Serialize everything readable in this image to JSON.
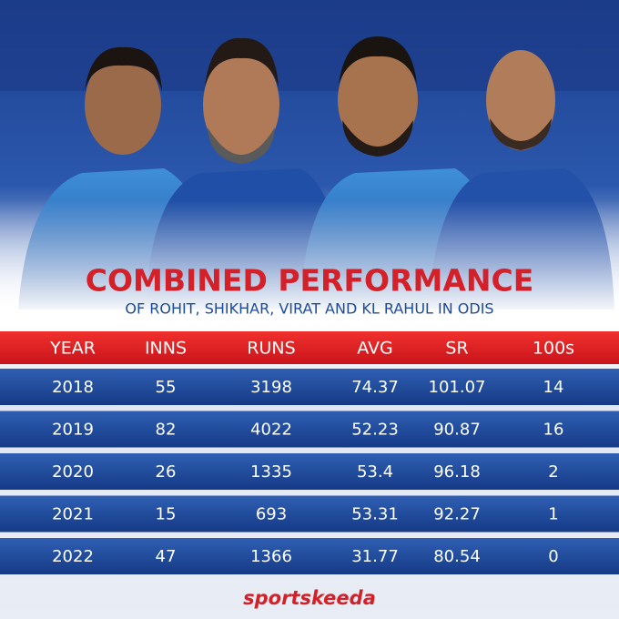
{
  "header": {
    "title": "COMBINED PERFORMANCE",
    "subtitle": "OF ROHIT, SHIKHAR, VIRAT AND KL RAHUL IN ODIS"
  },
  "table": {
    "columns": [
      "YEAR",
      "INNS",
      "RUNS",
      "AVG",
      "SR",
      "100s"
    ],
    "rows": [
      [
        2018,
        55,
        3198,
        74.37,
        101.07,
        14
      ],
      [
        2019,
        82,
        4022,
        52.23,
        90.87,
        16
      ],
      [
        2020,
        26,
        1335,
        53.4,
        96.18,
        2
      ],
      [
        2021,
        15,
        693,
        53.31,
        92.27,
        1
      ],
      [
        2022,
        47,
        1366,
        31.77,
        80.54,
        0
      ]
    ]
  },
  "footer": {
    "logo": "sportskeeda"
  }
}
